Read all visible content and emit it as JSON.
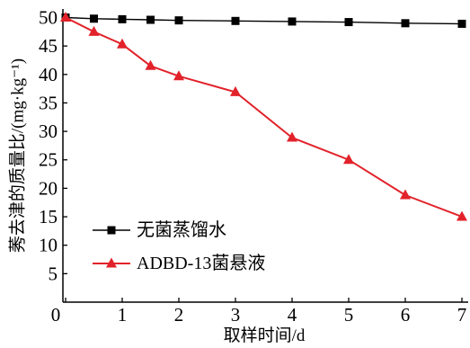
{
  "chart_data": {
    "type": "line",
    "xlabel": "取样时间/d",
    "ylabel": "莠去津的质量比/(mg·kg⁻¹)",
    "xlim": [
      0,
      7
    ],
    "ylim": [
      0,
      51.5
    ],
    "x_ticks": [
      0,
      1,
      2,
      3,
      4,
      5,
      6,
      7
    ],
    "y_ticks": [
      5,
      10,
      15,
      20,
      25,
      30,
      35,
      40,
      45,
      50
    ],
    "grid": false,
    "legend_position": "lower-left",
    "series": [
      {
        "name": "无菌蒸馏水",
        "color": "#000000",
        "marker": "square",
        "x": [
          0,
          0.5,
          1,
          1.5,
          2,
          3,
          4,
          5,
          6,
          7
        ],
        "y": [
          50,
          49.8,
          49.7,
          49.6,
          49.5,
          49.4,
          49.3,
          49.2,
          49.0,
          48.9
        ]
      },
      {
        "name": "ADBD-13菌悬液",
        "color": "#e2222a",
        "marker": "triangle",
        "x": [
          0,
          0.5,
          1,
          1.5,
          2,
          3,
          4,
          5,
          6,
          7
        ],
        "y": [
          50,
          47.5,
          45.3,
          41.5,
          39.7,
          36.9,
          28.9,
          25.0,
          18.8,
          15.0
        ]
      }
    ]
  }
}
